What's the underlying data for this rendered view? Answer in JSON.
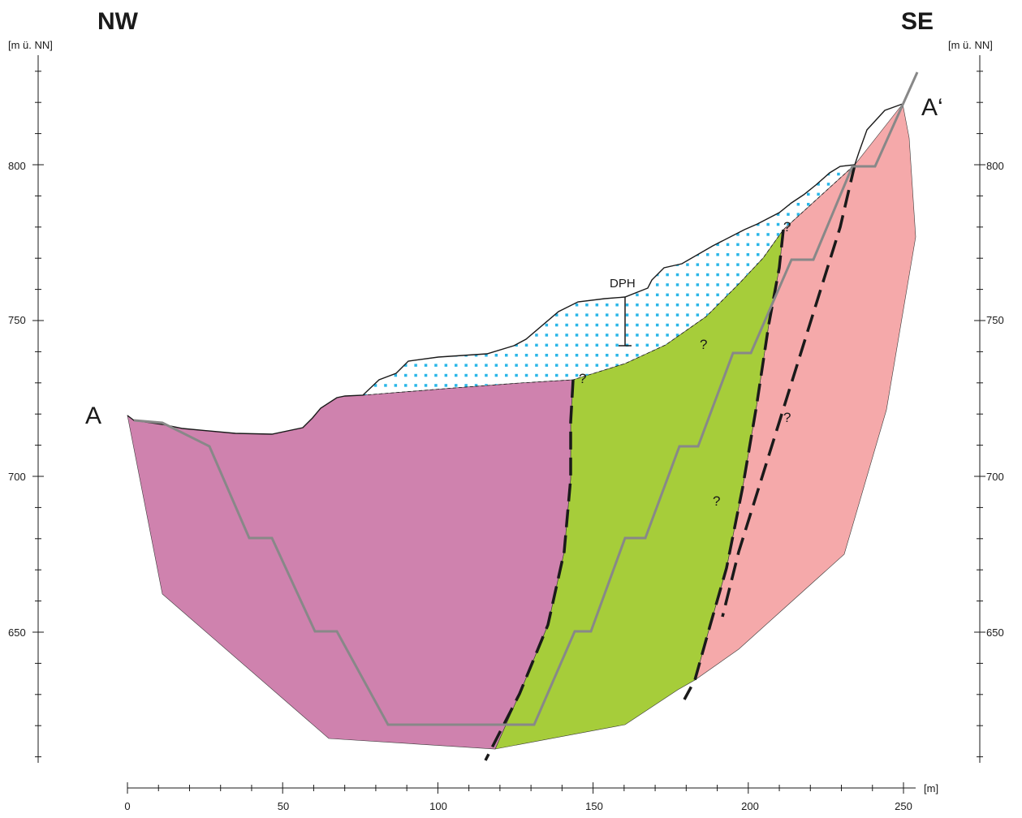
{
  "labels": {
    "left_orientation": "NW",
    "right_orientation": "SE",
    "left_axis_unit": "[m ü. NN]",
    "right_axis_unit": "[m ü. NN]",
    "x_axis_unit": "[m]",
    "section_start": "A",
    "section_end": "A‘",
    "dph_label": "DPH",
    "question_mark": "?"
  },
  "axes": {
    "x_ticks": [
      "0",
      "50",
      "100",
      "150",
      "200",
      "250"
    ],
    "y_ticks": [
      "650",
      "700",
      "750",
      "800"
    ]
  },
  "colors": {
    "purple_unit": "#cf82ae",
    "green_unit": "#a6cd3a",
    "pink_unit": "#f5a9aa",
    "dots": "#29b6e8",
    "trajectory": "#888888"
  }
}
